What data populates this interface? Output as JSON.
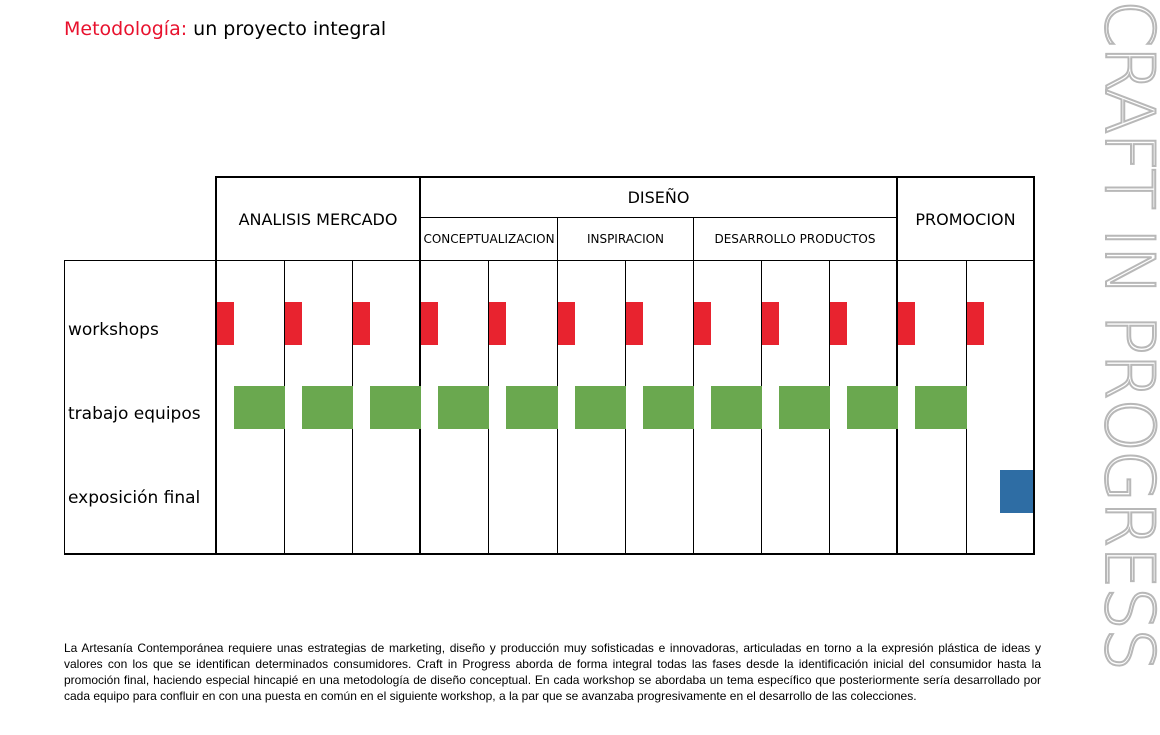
{
  "title": {
    "accent": "Metodología:",
    "rest": " un proyecto integral"
  },
  "vertical_text": "CRAFT IN PROGRESS",
  "header": {
    "analisis": "ANALISIS MERCADO",
    "diseno": "DISEÑO",
    "conceptualizacion": "CONCEPTUALIZACION",
    "inspiracion": "INSPIRACION",
    "desarrollo": "DESARROLLO PRODUCTOS",
    "promocion": "PROMOCION"
  },
  "rows": {
    "workshops": "workshops",
    "trabajo": "trabajo equipos",
    "exposicion": "exposición final"
  },
  "schedule": {
    "columns": 12,
    "workshops_in_columns": [
      1,
      2,
      3,
      4,
      5,
      6,
      7,
      8,
      9,
      10,
      11,
      12
    ],
    "team_work_in_columns": [
      1,
      2,
      3,
      4,
      5,
      6,
      7,
      8,
      9,
      10,
      11
    ],
    "final_exhibition_in_column": 12
  },
  "colors": {
    "workshop": "#e8232f",
    "team": "#6aa84f",
    "exhibition": "#2e6da4",
    "accent": "#e8112d"
  },
  "paragraph": "La Artesanía Contemporánea requiere unas estrategias de marketing, diseño y producción muy sofisticadas e innovadoras, articuladas en torno a la expresión plástica de ideas y valores con los que se identifican determinados consumidores. Craft in Progress aborda de forma integral todas las fases desde la identificación inicial del consumidor hasta la promoción final, haciendo especial hincapié en una metodología de diseño conceptual. En cada workshop se abordaba un tema específico que posteriormente sería desarrollado por cada equipo para confluir en con una puesta en común en el siguiente workshop, a la par que se avanzaba progresivamente en el desarrollo de las colecciones."
}
